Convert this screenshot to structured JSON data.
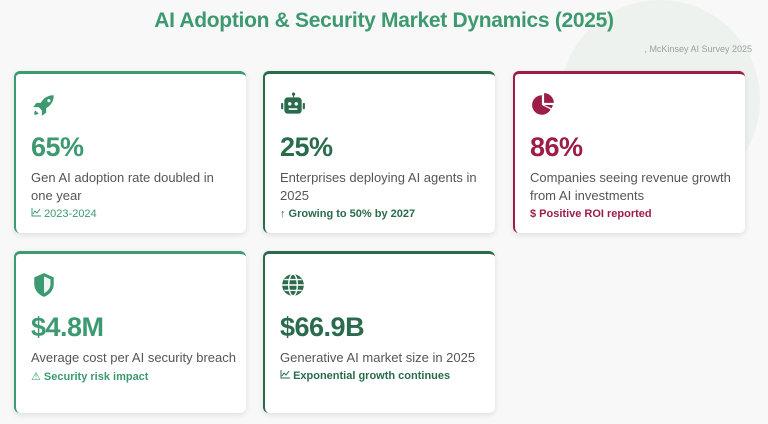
{
  "header": {
    "title": "AI Adoption & Security Market Dynamics (2025)",
    "source": ", McKinsey AI Survey 2025"
  },
  "cards": [
    {
      "icon": "rocket-icon",
      "value": "65%",
      "description": "Gen AI adoption rate doubled in one year",
      "note_icon": "chart-line-icon",
      "note": "⤴ 2023-2024",
      "note_text": "2023-2024",
      "color": "#3d9970"
    },
    {
      "icon": "robot-icon",
      "value": "25%",
      "description": "Enterprises deploying AI agents in 2025",
      "note_text": "↑ Growing to 50% by 2027",
      "color": "#2a6b4c"
    },
    {
      "icon": "pie-chart-icon",
      "value": "86%",
      "description": "Companies seeing revenue growth from AI investments",
      "note_text": "$ Positive ROI reported",
      "color": "#9b1d48"
    },
    {
      "icon": "shield-icon",
      "value": "$4.8M",
      "description": "Average cost per AI security breach",
      "note_text": "⚠ Security risk impact",
      "color": "#3d9970"
    },
    {
      "icon": "globe-icon",
      "value": "$66.9B",
      "description": "Generative AI market size in 2025",
      "note_text": "Exponential growth continues",
      "color": "#2a6b4c"
    }
  ]
}
